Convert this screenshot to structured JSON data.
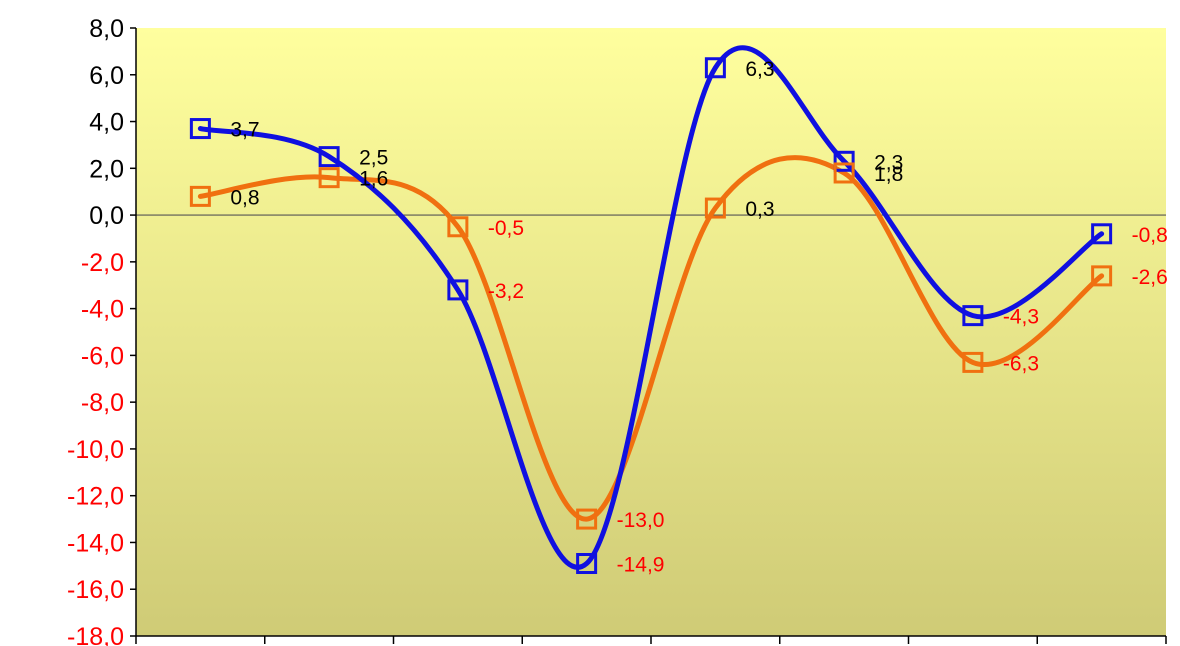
{
  "chart_data": {
    "type": "line",
    "title": "",
    "xlabel": "",
    "ylabel": "",
    "categories": [
      "",
      "",
      "",
      "",
      "",
      "",
      "",
      ""
    ],
    "ylim": [
      -18,
      8
    ],
    "ytick_step": 2,
    "y_tick_labels": [
      "8,0",
      "6,0",
      "4,0",
      "2,0",
      "0,0",
      "-2,0",
      "-4,0",
      "-6,0",
      "-8,0",
      "-10,0",
      "-12,0",
      "-14,0",
      "-16,0",
      "-18,0"
    ],
    "smooth": true,
    "grid": false,
    "legend": "none",
    "series": [
      {
        "color": "#1010e0",
        "values": [
          3.7,
          2.5,
          -3.2,
          -14.9,
          6.3,
          2.3,
          -4.3,
          -0.8
        ],
        "labels": [
          "3,7",
          "2,5",
          "-3,2",
          "-14,9",
          "6,3",
          "2,3",
          "-4,3",
          "-0,8"
        ]
      },
      {
        "color": "#f07010",
        "values": [
          0.8,
          1.6,
          -0.5,
          -13.0,
          0.3,
          1.8,
          -6.3,
          -2.6
        ],
        "labels": [
          "0,8",
          "1,6",
          "-0,5",
          "-13,0",
          "0,3",
          "1,8",
          "-6,3",
          "-2,6"
        ]
      }
    ],
    "colors": {
      "negative_text": "#ff0000",
      "positive_text": "#000000",
      "plot_top": "#ffff9e",
      "plot_bottom": "#cfcb76",
      "zero_line": "#555555",
      "axis": "#000000"
    }
  }
}
